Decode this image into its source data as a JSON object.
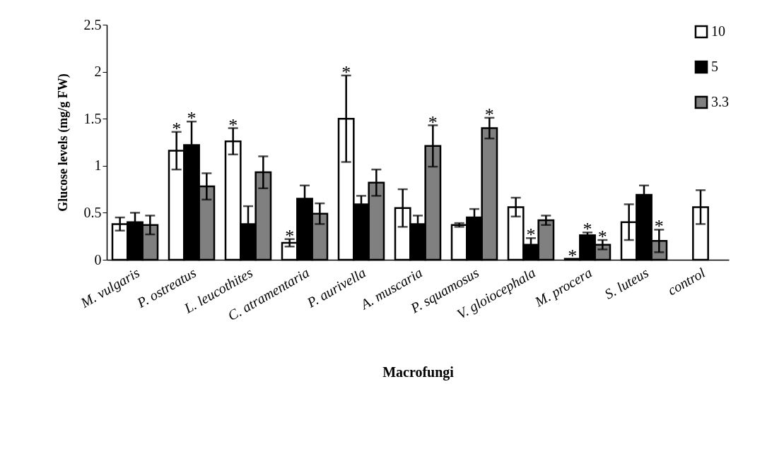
{
  "chart_data": {
    "type": "bar",
    "xlabel": "Macrofungi",
    "ylabel": "Glucose levels (mg/g FW)",
    "categories": [
      "M. vulgaris",
      "P. ostreatus",
      "L. leucothites",
      "C. atramentaria",
      "P. aurivella",
      "A. muscaria",
      "P. squamosus",
      "V. gloiocephala",
      "M. procera",
      "S. luteus",
      "control"
    ],
    "series": [
      {
        "name": "10",
        "color": "#ffffff",
        "values": [
          0.38,
          1.16,
          1.26,
          0.18,
          1.5,
          0.55,
          0.37,
          0.56,
          0.01,
          0.4,
          null
        ],
        "errors": [
          0.07,
          0.2,
          0.14,
          0.04,
          0.46,
          0.2,
          0.02,
          0.1,
          null,
          0.19,
          null
        ],
        "value_labels": [
          null,
          "*",
          "*",
          "*",
          "*",
          null,
          null,
          null,
          "*",
          null,
          null
        ]
      },
      {
        "name": "5",
        "color": "#000000",
        "values": [
          0.4,
          1.22,
          0.38,
          0.65,
          0.59,
          0.38,
          0.45,
          0.16,
          0.26,
          0.69,
          null
        ],
        "errors": [
          0.1,
          0.25,
          0.19,
          0.14,
          0.09,
          0.09,
          0.09,
          0.07,
          0.03,
          0.1,
          null
        ],
        "value_labels": [
          null,
          "*",
          null,
          null,
          null,
          null,
          null,
          "*",
          "*",
          null,
          null
        ]
      },
      {
        "name": "3.3",
        "color": "#808080",
        "values": [
          0.37,
          0.78,
          0.93,
          0.49,
          0.82,
          1.21,
          1.4,
          0.42,
          0.16,
          0.2,
          null
        ],
        "errors": [
          0.1,
          0.14,
          0.17,
          0.11,
          0.14,
          0.22,
          0.11,
          0.05,
          0.05,
          0.12,
          null
        ],
        "value_labels": [
          null,
          null,
          null,
          null,
          null,
          "*",
          "*",
          null,
          "*",
          "*",
          null
        ]
      },
      {
        "color": "#ffffff",
        "values": [
          null,
          null,
          null,
          null,
          null,
          null,
          null,
          null,
          null,
          null,
          0.56
        ],
        "errors": [
          null,
          null,
          null,
          null,
          null,
          null,
          null,
          null,
          null,
          null,
          0.18
        ]
      }
    ],
    "ylim": [
      0,
      2.5
    ],
    "yticks": [
      {
        "value": 0,
        "label": "0"
      },
      0.5,
      {
        "value": 1,
        "label": "1"
      },
      1.5,
      {
        "value": 2,
        "label": "2"
      },
      2.5
    ],
    "grid": false,
    "legend": "top right"
  }
}
